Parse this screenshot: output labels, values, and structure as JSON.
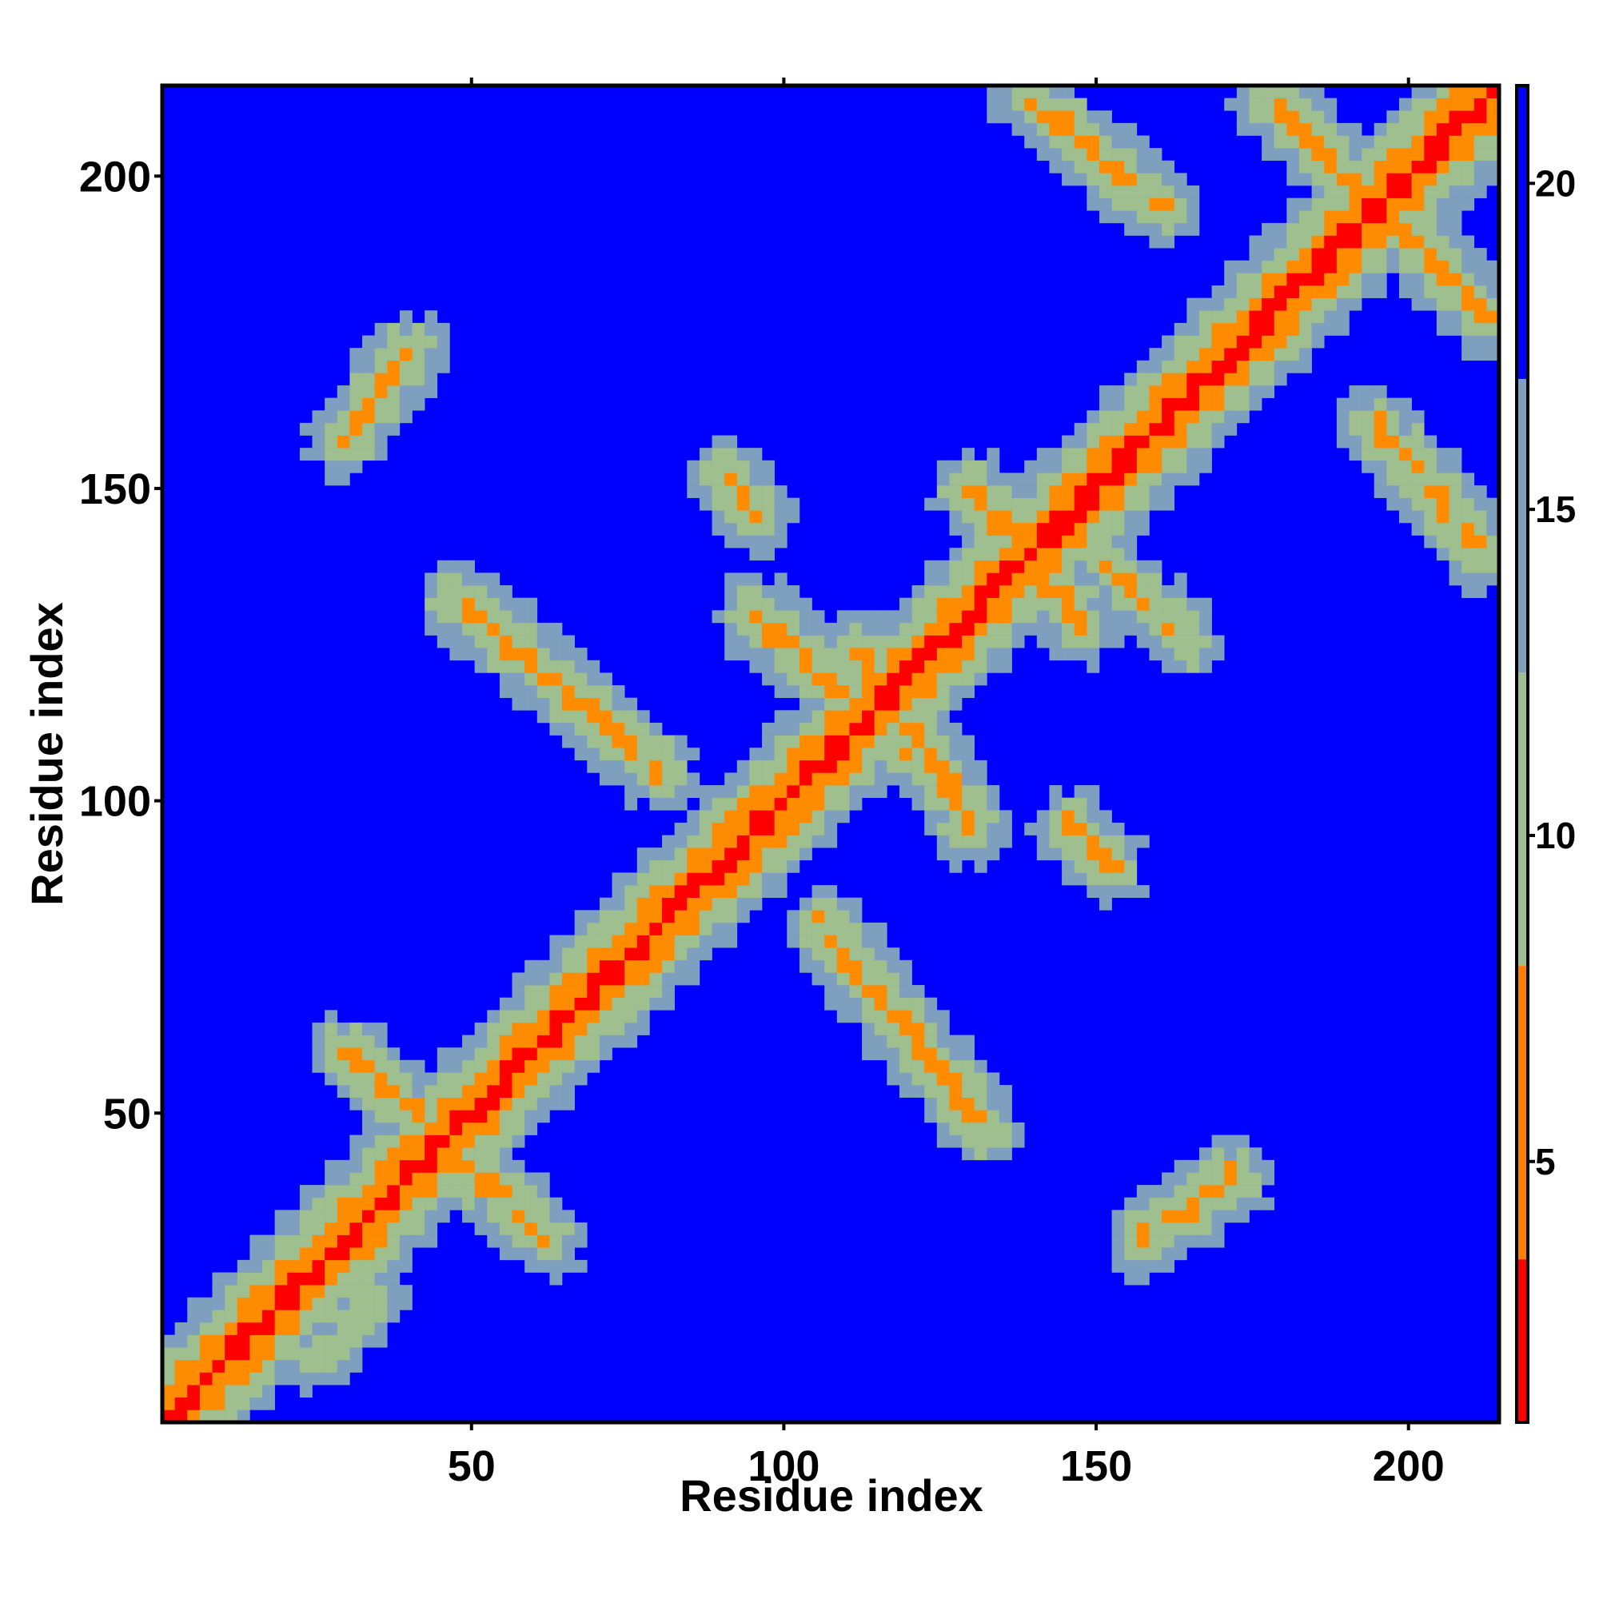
{
  "chart_data": {
    "type": "heatmap",
    "title": "",
    "xlabel": "Residue index",
    "ylabel": "Residue index",
    "xlim": [
      1,
      214
    ],
    "ylim": [
      1,
      214
    ],
    "x_ticks": [
      50,
      100,
      150,
      200
    ],
    "y_ticks": [
      50,
      100,
      150,
      200
    ],
    "x_tick_labels": [
      "50",
      "100",
      "150",
      "200"
    ],
    "y_tick_labels": [
      "50",
      "100",
      "150",
      "200"
    ],
    "grid": false,
    "colorbar": {
      "placement": "right",
      "range": [
        1,
        21.5
      ],
      "ticks": [
        5,
        10,
        15,
        20
      ],
      "tick_labels": [
        "5",
        "10",
        "15",
        "20"
      ],
      "colors": [
        "#ff0000",
        "#ff7f00",
        "#9fbf8f",
        "#0000ff"
      ]
    },
    "description_note": "Symmetric residue-residue distance map; values below ~8 shown red/orange, ~8-16 grey-green, above ~16 blue",
    "features": [
      {
        "kind": "diagonal",
        "from": [
          1,
          1
        ],
        "to": [
          214,
          214
        ],
        "value": 1
      },
      {
        "kind": "anti-diagonal",
        "from": [
          30,
          60
        ],
        "to": [
          62,
          30
        ],
        "value": 6
      },
      {
        "kind": "anti-diagonal",
        "from": [
          48,
          132
        ],
        "to": [
          80,
          105
        ],
        "value": 6
      },
      {
        "kind": "anti-diagonal",
        "from": [
          106,
          80
        ],
        "to": [
          132,
          48
        ],
        "value": 6
      },
      {
        "kind": "anti-diagonal",
        "from": [
          112,
          124
        ],
        "to": [
          130,
          96
        ],
        "value": 6
      },
      {
        "kind": "anti-diagonal",
        "from": [
          95,
          130
        ],
        "to": [
          120,
          108
        ],
        "value": 6
      },
      {
        "kind": "anti-diagonal",
        "from": [
          140,
          212
        ],
        "to": [
          160,
          195
        ],
        "value": 6
      },
      {
        "kind": "anti-diagonal",
        "from": [
          178,
          212
        ],
        "to": [
          212,
          178
        ],
        "value": 6
      },
      {
        "kind": "anti-diagonal",
        "from": [
          195,
          160
        ],
        "to": [
          212,
          140
        ],
        "value": 6
      },
      {
        "kind": "anti-diagonal",
        "from": [
          130,
          150
        ],
        "to": [
          148,
          128
        ],
        "value": 6
      },
      {
        "kind": "anti-diagonal",
        "from": [
          150,
          140
        ],
        "to": [
          165,
          125
        ],
        "value": 7
      },
      {
        "kind": "band",
        "from": [
          158,
          30
        ],
        "to": [
          172,
          40
        ],
        "value": 6
      },
      {
        "kind": "band",
        "from": [
          30,
          158
        ],
        "to": [
          40,
          172
        ],
        "value": 6
      },
      {
        "kind": "band",
        "from": [
          91,
          152
        ],
        "to": [
          95,
          146
        ],
        "value": 6
      },
      {
        "kind": "band",
        "from": [
          146,
          96
        ],
        "to": [
          152,
          90
        ],
        "value": 6
      },
      {
        "kind": "band",
        "from": [
          25,
          10
        ],
        "to": [
          35,
          20
        ],
        "value": 8
      }
    ]
  }
}
